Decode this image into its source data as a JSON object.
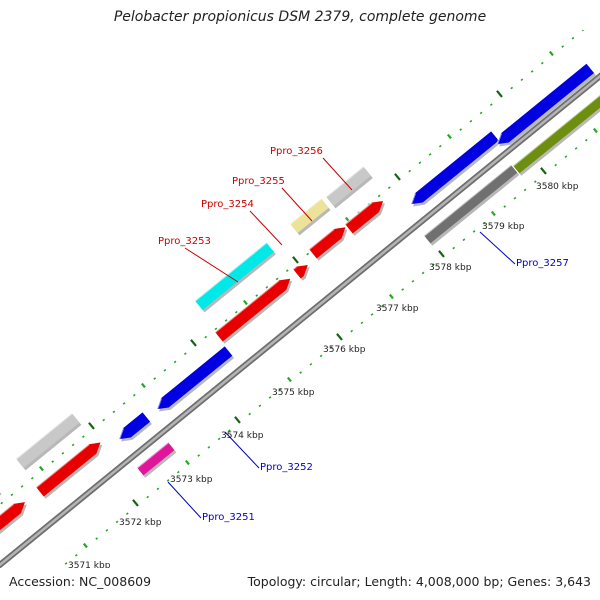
{
  "title": "Pelobacter propionicus DSM 2379, complete genome",
  "footer": {
    "accession": "Accession: NC_008609",
    "stats": "Topology: circular; Length: 4,008,000 bp; Genes: 3,643"
  },
  "colors": {
    "backbone": "#999999",
    "tick_inner": "#116611",
    "tick_outer": "#22aa22",
    "forward_label": "#cc0000",
    "reverse_label": "#0000cc"
  },
  "ticks": [
    {
      "label": "3571 kbp"
    },
    {
      "label": "3572 kbp"
    },
    {
      "label": "3573 kbp"
    },
    {
      "label": "3574 kbp"
    },
    {
      "label": "3575 kbp"
    },
    {
      "label": "3576 kbp"
    },
    {
      "label": "3577 kbp"
    },
    {
      "label": "3578 kbp"
    },
    {
      "label": "3579 kbp"
    },
    {
      "label": "3580 kbp"
    }
  ],
  "gene_labels": [
    {
      "name": "Ppro_3253",
      "strand": "forward"
    },
    {
      "name": "Ppro_3254",
      "strand": "forward"
    },
    {
      "name": "Ppro_3255",
      "strand": "forward"
    },
    {
      "name": "Ppro_3256",
      "strand": "forward"
    },
    {
      "name": "Ppro_3257",
      "strand": "reverse"
    },
    {
      "name": "Ppro_3252",
      "strand": "reverse"
    },
    {
      "name": "Ppro_3251",
      "strand": "reverse"
    }
  ],
  "features": [
    {
      "track": "outer",
      "color": "#443d7a"
    },
    {
      "track": "outer",
      "color": "#c8c8c8"
    },
    {
      "track": "outer",
      "color": "#00e8e8"
    },
    {
      "track": "outer",
      "color": "#ece39a"
    },
    {
      "track": "outer",
      "color": "#c8c8c8"
    },
    {
      "track": "forward",
      "color": "#e80000"
    },
    {
      "track": "forward",
      "color": "#e80000"
    },
    {
      "track": "forward",
      "color": "#e80000"
    },
    {
      "track": "forward",
      "color": "#e80000"
    },
    {
      "track": "forward",
      "color": "#e80000"
    },
    {
      "track": "forward",
      "color": "#e80000"
    },
    {
      "track": "reverse",
      "color": "#0000e0"
    },
    {
      "track": "reverse",
      "color": "#0000e0"
    },
    {
      "track": "reverse",
      "color": "#0000e0"
    },
    {
      "track": "reverse",
      "color": "#0000e0"
    },
    {
      "track": "reverse-inner",
      "color": "#e0159a"
    },
    {
      "track": "reverse-inner",
      "color": "#707070"
    },
    {
      "track": "reverse-inner",
      "color": "#6e8e10"
    }
  ]
}
